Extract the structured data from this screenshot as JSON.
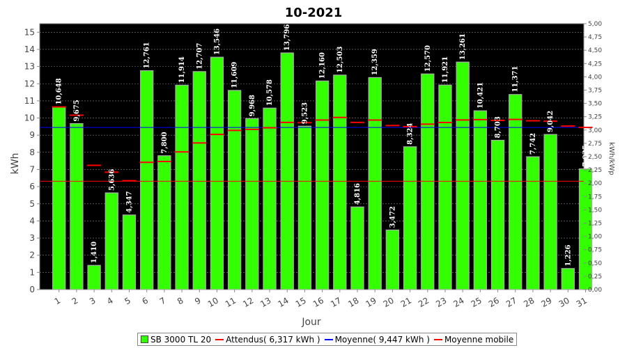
{
  "chart_data": {
    "type": "bar",
    "title": "10-2021",
    "xlabel": "Jour",
    "ylabel": "kWh",
    "y2label": "kWh/kWp",
    "ylim": [
      0,
      15.5
    ],
    "y2lim": [
      0,
      5.0
    ],
    "yticks": [
      "0",
      "1",
      "2",
      "3",
      "4",
      "5",
      "6",
      "7",
      "8",
      "9",
      "10",
      "11",
      "12",
      "13",
      "14",
      "15"
    ],
    "y2ticks": [
      "0,00",
      "0,25",
      "0,50",
      "0,75",
      "1,00",
      "1,25",
      "1,50",
      "1,75",
      "2,00",
      "2,25",
      "2,50",
      "2,75",
      "3,00",
      "3,25",
      "3,50",
      "3,75",
      "4,00",
      "4,25",
      "4,50",
      "4,75",
      "5,00"
    ],
    "categories": [
      "1",
      "2",
      "3",
      "4",
      "5",
      "6",
      "7",
      "8",
      "9",
      "10",
      "11",
      "12",
      "13",
      "14",
      "15",
      "16",
      "17",
      "18",
      "19",
      "20",
      "21",
      "22",
      "23",
      "24",
      "25",
      "26",
      "27",
      "28",
      "29",
      "30",
      "31"
    ],
    "series": [
      {
        "name": "SB 3000 TL 20",
        "color": "#33ff00",
        "values": [
          10.648,
          9.675,
          1.41,
          5.636,
          4.347,
          12.761,
          7.8,
          11.914,
          12.707,
          13.546,
          11.609,
          9.968,
          10.578,
          13.796,
          9.523,
          12.16,
          12.503,
          4.816,
          12.359,
          3.472,
          8.324,
          12.57,
          11.921,
          13.261,
          10.421,
          8.703,
          11.371,
          7.742,
          9.042,
          1.226,
          7.035
        ],
        "labels": [
          "10,648",
          "9,675",
          "1,410",
          "5,636",
          "4,347",
          "12,761",
          "7,800",
          "11,914",
          "12,707",
          "13,546",
          "11,609",
          "9,968",
          "10,578",
          "13,796",
          "9,523",
          "12,160",
          "12,503",
          "4,816",
          "12,359",
          "3,472",
          "8,324",
          "12,570",
          "11,921",
          "13,261",
          "10,421",
          "8,703",
          "11,371",
          "7,742",
          "9,042",
          "1,226",
          "7,035"
        ]
      },
      {
        "name": "Attendus( 6,317 kWh )",
        "color": "#ff0000",
        "value": 6.317
      },
      {
        "name": "Moyenne( 9,447 kWh )",
        "color": "#0000ff",
        "value": 9.447
      },
      {
        "name": "Moyenne mobile",
        "color": "#ff0000",
        "values": [
          10.648,
          10.162,
          7.244,
          6.842,
          6.343,
          7.413,
          7.468,
          8.024,
          8.544,
          9.044,
          9.277,
          9.335,
          9.431,
          9.741,
          9.727,
          9.88,
          10.034,
          9.744,
          9.881,
          9.56,
          9.501,
          9.64,
          9.739,
          9.886,
          9.908,
          9.862,
          9.918,
          9.841,
          9.814,
          9.528,
          9.447
        ]
      }
    ],
    "legend_position": "bottom",
    "grid": true
  }
}
